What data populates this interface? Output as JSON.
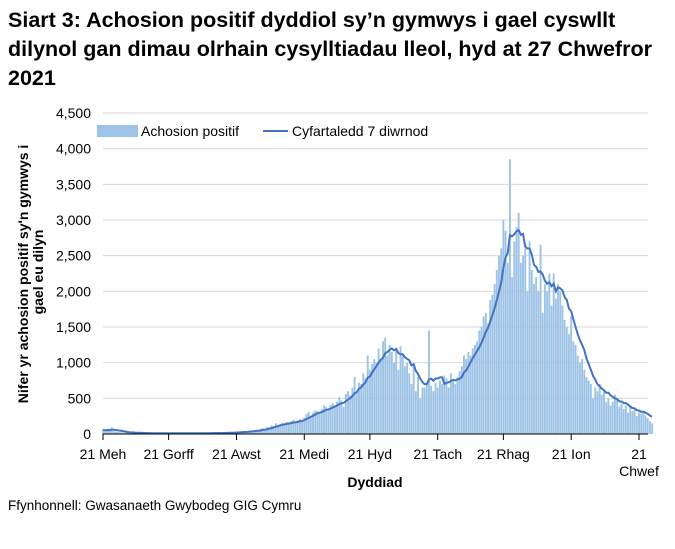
{
  "chart_data": {
    "type": "bar+line",
    "title": "Siart 3: Achosion positif dyddiol sy’n gymwys i gael cyswllt dilynol gan dimau olrhain cysylltiadau lleol, hyd at 27 Chwefror 2021",
    "xlabel": "Dyddiad",
    "ylabel": "Nifer yr achosion positif sy'n gymwys i gael eu dilyn",
    "source": "Ffynhonnell: Gwasanaeth Gwybodeg GIG Cymru",
    "start_date": "2020-06-21",
    "end_date": "2021-02-27",
    "ylim": [
      0,
      4500
    ],
    "yticks": [
      0,
      500,
      1000,
      1500,
      2000,
      2500,
      3000,
      3500,
      4000,
      4500
    ],
    "ytick_labels": [
      "0",
      "500",
      "1,000",
      "1,500",
      "2,000",
      "2,500",
      "3,000",
      "3,500",
      "4,000",
      "4,500"
    ],
    "xticks": [
      {
        "date": "2020-06-21",
        "label": "21 Meh"
      },
      {
        "date": "2020-07-21",
        "label": "21 Gorff"
      },
      {
        "date": "2020-08-21",
        "label": "21 Awst"
      },
      {
        "date": "2020-09-21",
        "label": "21 Medi"
      },
      {
        "date": "2020-10-21",
        "label": "21 Hyd"
      },
      {
        "date": "2020-11-21",
        "label": "21 Tach"
      },
      {
        "date": "2020-12-21",
        "label": "21 Rhag"
      },
      {
        "date": "2021-01-21",
        "label": "21 Ion"
      },
      {
        "date": "2021-02-21",
        "label": "21",
        "label2": "Chwef"
      }
    ],
    "grid": true,
    "legend_position": "top",
    "series": [
      {
        "name": "Achosion positif",
        "kind": "bar",
        "color": "#9dc3e6",
        "values": [
          60,
          40,
          70,
          50,
          90,
          40,
          30,
          30,
          25,
          20,
          30,
          20,
          15,
          20,
          15,
          10,
          20,
          15,
          10,
          12,
          8,
          10,
          12,
          8,
          15,
          10,
          8,
          12,
          10,
          15,
          8,
          10,
          12,
          9,
          14,
          10,
          8,
          12,
          15,
          10,
          9,
          12,
          12,
          10,
          8,
          14,
          10,
          15,
          12,
          15,
          12,
          18,
          10,
          14,
          12,
          16,
          20,
          18,
          25,
          15,
          22,
          30,
          25,
          35,
          30,
          40,
          28,
          45,
          50,
          40,
          60,
          55,
          70,
          80,
          65,
          100,
          90,
          120,
          110,
          150,
          130,
          140,
          160,
          130,
          170,
          150,
          180,
          200,
          160,
          190,
          210,
          190,
          230,
          280,
          310,
          260,
          300,
          330,
          320,
          290,
          350,
          400,
          380,
          330,
          410,
          430,
          400,
          450,
          520,
          470,
          380,
          560,
          600,
          540,
          650,
          800,
          580,
          720,
          700,
          850,
          780,
          1100,
          900,
          980,
          1050,
          1000,
          1200,
          1050,
          1300,
          1350,
          1100,
          1250,
          1150,
          1000,
          1200,
          900,
          1230,
          1100,
          950,
          1000,
          850,
          700,
          1000,
          600,
          800,
          500,
          650,
          650,
          700,
          1450,
          680,
          600,
          720,
          650,
          750,
          700,
          820,
          780,
          650,
          850,
          760,
          700,
          800,
          880,
          950,
          1100,
          1050,
          1150,
          1100,
          1200,
          1250,
          1300,
          1450,
          1500,
          1650,
          1700,
          1550,
          1880,
          1950,
          2100,
          2300,
          2500,
          2600,
          3000,
          2850,
          2400,
          3850,
          2200,
          2700,
          2900,
          3100,
          2400,
          2500,
          2600,
          2000,
          2700,
          2300,
          2100,
          2200,
          2000,
          2650,
          1700,
          2100,
          2000,
          2250,
          1800,
          2250,
          1900,
          2100,
          2000,
          1800,
          1600,
          1500,
          1400,
          1650,
          1300,
          1250,
          1100,
          1000,
          1050,
          900,
          800,
          750,
          700,
          500,
          650,
          600,
          700,
          550,
          600,
          450,
          500,
          400,
          450,
          550,
          480,
          380,
          420,
          350,
          400,
          300,
          380,
          320,
          350,
          250,
          300,
          280,
          320,
          260,
          220,
          180,
          150
        ]
      },
      {
        "name": "Cyfartaledd 7 diwrnod",
        "kind": "line",
        "color": "#4472c4",
        "derived_from": "Achosion positif (7-day rolling mean)"
      }
    ]
  }
}
